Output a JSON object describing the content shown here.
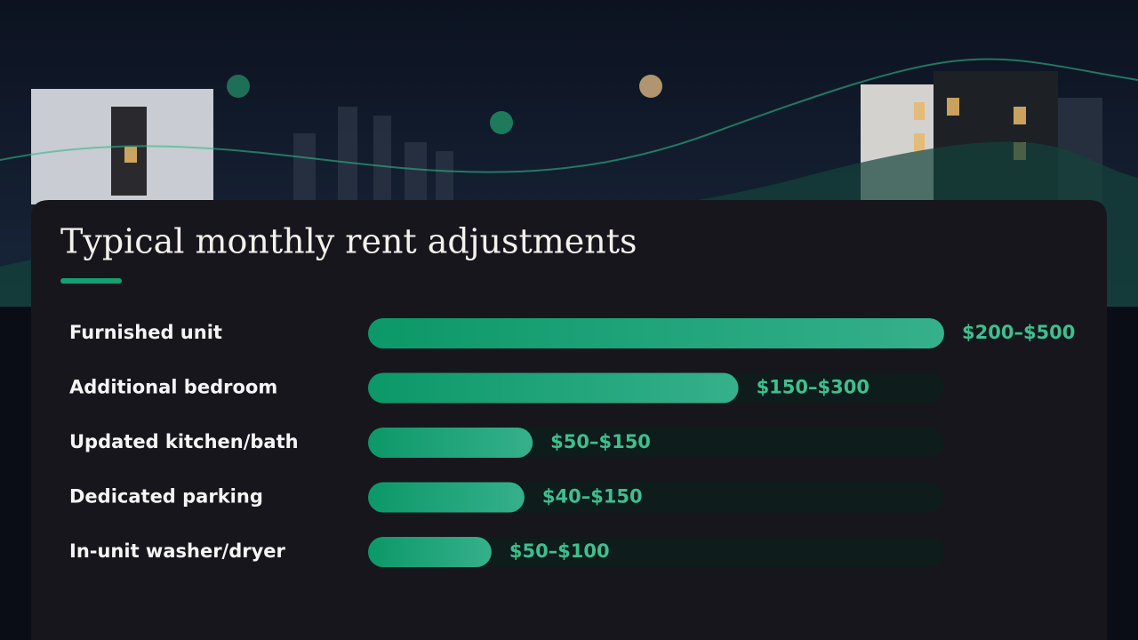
{
  "chart_data": {
    "type": "bar",
    "orientation": "horizontal",
    "title": "Typical monthly rent adjustments",
    "categories": [
      "Furnished unit",
      "Additional bedroom",
      "Updated kitchen/bath",
      "Dedicated parking",
      "In-unit washer/dryer"
    ],
    "values": [
      350,
      225,
      100,
      95,
      75
    ],
    "value_labels": [
      "$200–$500",
      "$150–$300",
      "$50–$150",
      "$40–$150",
      "$50–$100"
    ],
    "xlim": [
      0,
      350
    ],
    "color": "#12a070"
  }
}
